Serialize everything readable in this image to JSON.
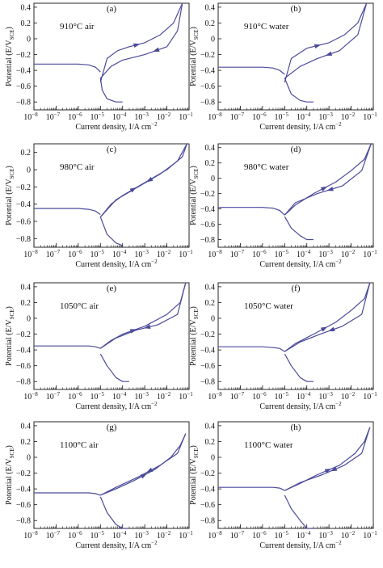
{
  "figure": {
    "x_tick_labels": [
      "10",
      "10",
      "10",
      "10",
      "10",
      "10",
      "10",
      "10"
    ],
    "x_tick_exponents": [
      "−8",
      "−7",
      "−6",
      "−5",
      "−4",
      "−3",
      "−2",
      "−1"
    ],
    "x_axis_label": "Current density, I/A cm",
    "x_axis_label_exp": "−2",
    "y_axis_label": "Potential (E/V",
    "y_axis_label_sub": "SCE",
    "y_axis_label_end": ")",
    "y_tick_labels": [
      "0.4",
      "0.2",
      "0",
      "−0.2",
      "−0.4",
      "−0.6",
      "−0.8"
    ],
    "curve_color": "#4b4a9a"
  },
  "chart_data": [
    {
      "type": "line",
      "panel": "(a)",
      "condition": "910°C air",
      "xscale": "log",
      "xlim": [
        1e-08,
        0.1
      ],
      "ylim": [
        -0.9,
        0.45
      ],
      "series": [
        {
          "x": [
            1e-08,
            1e-07,
            1e-06,
            3e-06,
            6e-06,
            1e-05
          ],
          "y": [
            -0.32,
            -0.32,
            -0.32,
            -0.33,
            -0.36,
            -0.42
          ]
        },
        {
          "x": [
            1e-05,
            1.2e-05,
            2e-05,
            5e-05,
            0.0001
          ],
          "y": [
            -0.5,
            -0.65,
            -0.76,
            -0.8,
            -0.8
          ]
        },
        {
          "x": [
            1e-05,
            2e-05,
            6e-05,
            0.0002,
            0.001,
            0.005,
            0.02,
            0.05
          ],
          "y": [
            -0.55,
            -0.25,
            -0.15,
            -0.1,
            -0.05,
            0.05,
            0.2,
            0.45
          ]
        },
        {
          "x": [
            0.05,
            0.03,
            0.01,
            0.001,
            0.0001,
            3e-05,
            1e-05
          ],
          "y": [
            0.45,
            0.1,
            -0.1,
            -0.2,
            -0.27,
            -0.35,
            -0.5
          ]
        }
      ]
    },
    {
      "type": "line",
      "panel": "(b)",
      "condition": "910°C water",
      "xscale": "log",
      "xlim": [
        1e-08,
        0.1
      ],
      "ylim": [
        -0.9,
        0.45
      ],
      "series": [
        {
          "x": [
            1e-08,
            1e-07,
            1e-06,
            3e-06,
            6e-06,
            1e-05
          ],
          "y": [
            -0.36,
            -0.36,
            -0.36,
            -0.37,
            -0.4,
            -0.45
          ]
        },
        {
          "x": [
            1e-05,
            2e-05,
            5e-05,
            0.0001,
            0.0002
          ],
          "y": [
            -0.5,
            -0.7,
            -0.78,
            -0.8,
            -0.8
          ]
        },
        {
          "x": [
            1e-05,
            2e-05,
            0.0001,
            0.001,
            0.005,
            0.02,
            0.05
          ],
          "y": [
            -0.55,
            -0.25,
            -0.12,
            -0.05,
            0.05,
            0.2,
            0.45
          ]
        },
        {
          "x": [
            0.05,
            0.02,
            0.003,
            0.0003,
            5e-05,
            1e-05
          ],
          "y": [
            0.45,
            0.05,
            -0.15,
            -0.25,
            -0.35,
            -0.5
          ]
        }
      ]
    },
    {
      "type": "line",
      "panel": "(c)",
      "condition": "980°C air",
      "xscale": "log",
      "xlim": [
        1e-08,
        0.1
      ],
      "ylim": [
        -0.9,
        0.3
      ],
      "series": [
        {
          "x": [
            1e-08,
            1e-07,
            1e-06,
            3e-06,
            6e-06,
            1e-05
          ],
          "y": [
            -0.45,
            -0.45,
            -0.45,
            -0.46,
            -0.48,
            -0.52
          ]
        },
        {
          "x": [
            1e-05,
            2e-05,
            5e-05,
            0.0001
          ],
          "y": [
            -0.55,
            -0.75,
            -0.85,
            -0.88
          ]
        },
        {
          "x": [
            1e-05,
            3e-05,
            0.0001,
            0.001,
            0.01,
            0.05,
            0.08
          ],
          "y": [
            -0.55,
            -0.4,
            -0.3,
            -0.15,
            0.0,
            0.15,
            0.3
          ]
        },
        {
          "x": [
            0.08,
            0.03,
            0.005,
            0.0005,
            5e-05,
            1e-05
          ],
          "y": [
            0.3,
            0.1,
            -0.05,
            -0.2,
            -0.35,
            -0.55
          ]
        }
      ]
    },
    {
      "type": "line",
      "panel": "(d)",
      "condition": "980°C water",
      "xscale": "log",
      "xlim": [
        1e-08,
        0.1
      ],
      "ylim": [
        -0.9,
        0.45
      ],
      "series": [
        {
          "x": [
            1e-08,
            1e-07,
            1e-06,
            3e-06,
            6e-06,
            1e-05
          ],
          "y": [
            -0.38,
            -0.38,
            -0.38,
            -0.39,
            -0.42,
            -0.48
          ]
        },
        {
          "x": [
            1e-05,
            2e-05,
            5e-05,
            0.0001,
            0.0002
          ],
          "y": [
            -0.5,
            -0.65,
            -0.75,
            -0.8,
            -0.8
          ]
        },
        {
          "x": [
            1e-05,
            3e-05,
            0.0002,
            0.002,
            0.01,
            0.04,
            0.08
          ],
          "y": [
            -0.48,
            -0.35,
            -0.2,
            -0.05,
            0.1,
            0.25,
            0.45
          ]
        },
        {
          "x": [
            0.08,
            0.03,
            0.004,
            0.0003,
            3e-05,
            1e-05
          ],
          "y": [
            0.45,
            0.1,
            -0.1,
            -0.2,
            -0.32,
            -0.48
          ]
        }
      ]
    },
    {
      "type": "line",
      "panel": "(e)",
      "condition": "1050°C air",
      "xscale": "log",
      "xlim": [
        1e-08,
        0.1
      ],
      "ylim": [
        -0.9,
        0.45
      ],
      "series": [
        {
          "x": [
            1e-08,
            1e-07,
            1e-06,
            3e-06,
            6e-06,
            1e-05
          ],
          "y": [
            -0.35,
            -0.35,
            -0.35,
            -0.35,
            -0.36,
            -0.38
          ]
        },
        {
          "x": [
            1e-05,
            2e-05,
            5e-05,
            0.0001,
            0.0002
          ],
          "y": [
            -0.45,
            -0.6,
            -0.75,
            -0.8,
            -0.8
          ]
        },
        {
          "x": [
            1e-05,
            3e-05,
            0.0001,
            0.001,
            0.01,
            0.04,
            0.07
          ],
          "y": [
            -0.38,
            -0.28,
            -0.2,
            -0.1,
            0.05,
            0.2,
            0.45
          ]
        },
        {
          "x": [
            0.07,
            0.03,
            0.004,
            0.0004,
            5e-05,
            1e-05
          ],
          "y": [
            0.45,
            0.05,
            -0.08,
            -0.15,
            -0.25,
            -0.38
          ]
        }
      ]
    },
    {
      "type": "line",
      "panel": "(f)",
      "condition": "1050°C water",
      "xscale": "log",
      "xlim": [
        1e-08,
        0.1
      ],
      "ylim": [
        -0.9,
        0.45
      ],
      "series": [
        {
          "x": [
            1e-08,
            1e-07,
            1e-06,
            3e-06,
            6e-06,
            1e-05
          ],
          "y": [
            -0.36,
            -0.36,
            -0.36,
            -0.37,
            -0.38,
            -0.42
          ]
        },
        {
          "x": [
            1e-05,
            2e-05,
            5e-05,
            0.0001,
            0.0002
          ],
          "y": [
            -0.45,
            -0.6,
            -0.75,
            -0.8,
            -0.8
          ]
        },
        {
          "x": [
            1e-05,
            3e-05,
            0.0002,
            0.002,
            0.01,
            0.04,
            0.07
          ],
          "y": [
            -0.42,
            -0.32,
            -0.2,
            -0.05,
            0.1,
            0.25,
            0.45
          ]
        },
        {
          "x": [
            0.07,
            0.03,
            0.004,
            0.0004,
            5e-05,
            1e-05
          ],
          "y": [
            0.45,
            0.05,
            -0.1,
            -0.2,
            -0.3,
            -0.42
          ]
        }
      ]
    },
    {
      "type": "line",
      "panel": "(g)",
      "condition": "1100°C air",
      "xscale": "log",
      "xlim": [
        1e-08,
        0.1
      ],
      "ylim": [
        -0.9,
        0.45
      ],
      "series": [
        {
          "x": [
            1e-08,
            1e-07,
            1e-06,
            3e-06,
            6e-06,
            1e-05
          ],
          "y": [
            -0.45,
            -0.45,
            -0.45,
            -0.45,
            -0.46,
            -0.48
          ]
        },
        {
          "x": [
            1e-05,
            2e-05,
            5e-05,
            0.0001,
            0.0002
          ],
          "y": [
            -0.5,
            -0.7,
            -0.85,
            -0.9,
            -0.9
          ]
        },
        {
          "x": [
            1e-05,
            5e-05,
            0.0003,
            0.003,
            0.015,
            0.04,
            0.07
          ],
          "y": [
            -0.48,
            -0.4,
            -0.3,
            -0.15,
            0.0,
            0.15,
            0.3
          ]
        },
        {
          "x": [
            0.07,
            0.03,
            0.005,
            0.0005,
            5e-05,
            1e-05
          ],
          "y": [
            0.3,
            0.05,
            -0.1,
            -0.25,
            -0.38,
            -0.48
          ]
        }
      ]
    },
    {
      "type": "line",
      "panel": "(h)",
      "condition": "1100°C water",
      "xscale": "log",
      "xlim": [
        1e-08,
        0.1
      ],
      "ylim": [
        -0.9,
        0.45
      ],
      "series": [
        {
          "x": [
            1e-08,
            1e-07,
            1e-06,
            3e-06,
            6e-06,
            1e-05
          ],
          "y": [
            -0.38,
            -0.38,
            -0.38,
            -0.38,
            -0.39,
            -0.42
          ]
        },
        {
          "x": [
            1e-05,
            2e-05,
            5e-05,
            0.0001,
            0.0002
          ],
          "y": [
            -0.48,
            -0.65,
            -0.8,
            -0.9,
            -0.9
          ]
        },
        {
          "x": [
            1e-05,
            5e-05,
            0.0003,
            0.003,
            0.015,
            0.04,
            0.07
          ],
          "y": [
            -0.42,
            -0.33,
            -0.22,
            -0.1,
            0.05,
            0.2,
            0.38
          ]
        },
        {
          "x": [
            0.07,
            0.03,
            0.005,
            0.0005,
            5e-05,
            1e-05
          ],
          "y": [
            0.38,
            0.05,
            -0.1,
            -0.22,
            -0.32,
            -0.42
          ]
        }
      ]
    }
  ]
}
